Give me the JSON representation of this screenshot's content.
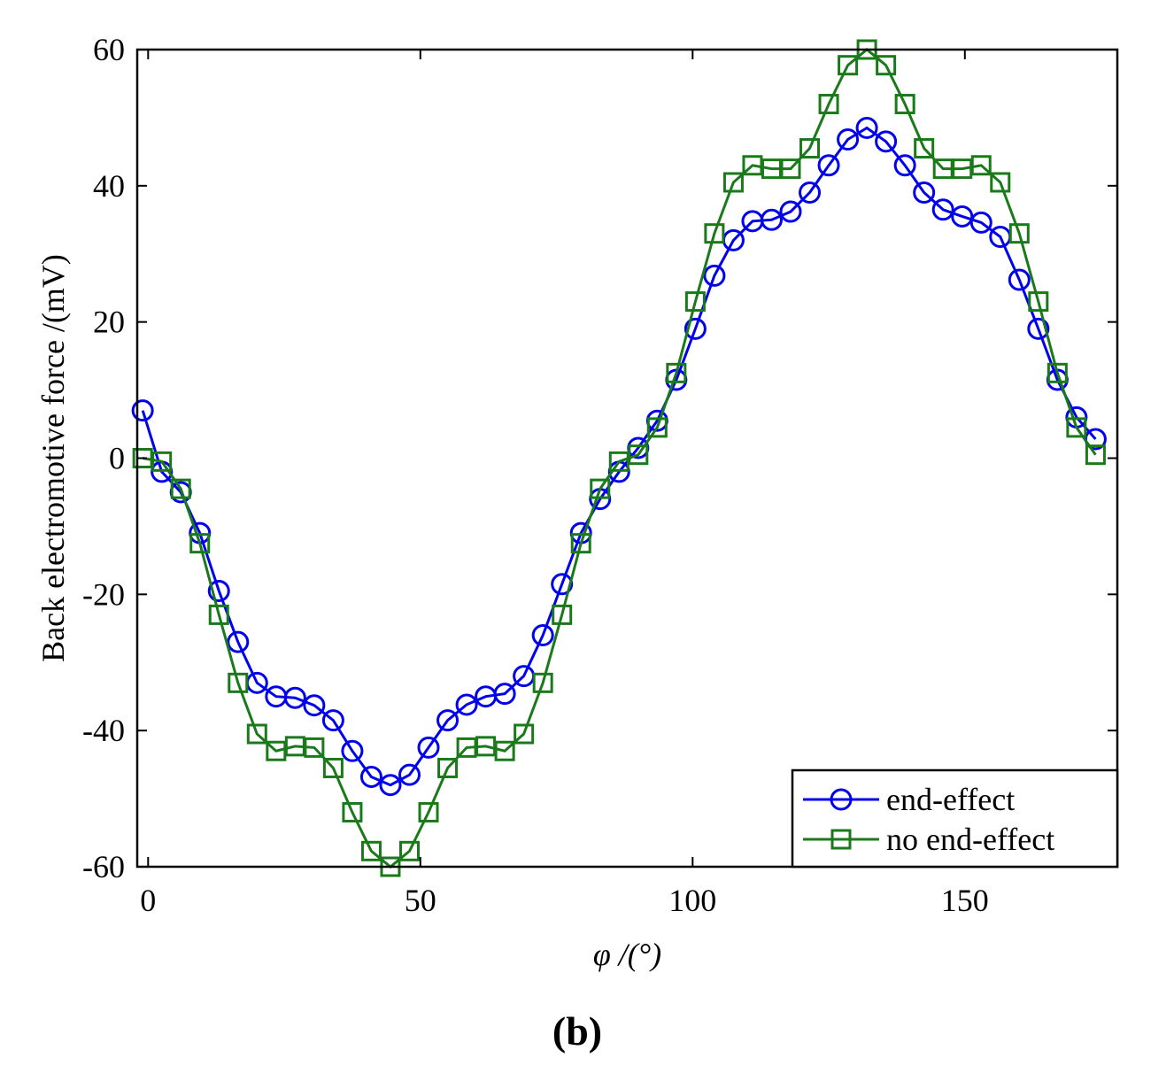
{
  "chart_data": {
    "type": "line",
    "title": "",
    "xlabel": "φ /(°)",
    "ylabel": "Back electromotive force /(mV)",
    "xlim": [
      -2,
      178
    ],
    "ylim": [
      -60,
      60
    ],
    "xticks": [
      0,
      50,
      100,
      150
    ],
    "yticks": [
      -60,
      -40,
      -20,
      0,
      20,
      40,
      60
    ],
    "xtick_labels": [
      "0",
      "50",
      "100",
      "150"
    ],
    "ytick_labels": [
      "-60",
      "-40",
      "-20",
      "0",
      "20",
      "40",
      "60"
    ],
    "grid": false,
    "legend_position": "bottom-right",
    "x": [
      -1,
      2.5,
      6,
      9.5,
      13,
      16.5,
      20,
      23.5,
      27,
      30.5,
      34,
      37.5,
      41,
      44.5,
      48,
      51.5,
      55,
      58.5,
      62,
      65.5,
      69,
      72.5,
      76,
      79.5,
      83,
      86.5,
      90,
      93.5,
      97,
      100.5,
      104,
      107.5,
      111,
      114.5,
      118,
      121.5,
      125,
      128.5,
      132,
      135.5,
      139,
      142.5,
      146,
      149.5,
      153,
      156.5,
      160,
      163.5,
      167,
      170.5,
      174
    ],
    "series": [
      {
        "name": "end-effect",
        "color": "#0000ee",
        "marker": "circle",
        "values": [
          7,
          -2,
          -5,
          -11,
          -19.5,
          -27,
          -33,
          -35,
          -35.2,
          -36.3,
          -38.5,
          -43,
          -46.8,
          -48,
          -46.5,
          -42.5,
          -38.5,
          -36.2,
          -35,
          -34.6,
          -32,
          -26,
          -18.5,
          -11,
          -6,
          -2,
          1.5,
          5.5,
          11.5,
          19,
          26.8,
          32,
          34.8,
          35,
          36.2,
          39,
          43,
          46.8,
          48.5,
          46.5,
          43,
          39,
          36.5,
          35.5,
          34.6,
          32.5,
          26.2,
          19,
          11.5,
          6,
          2.8
        ]
      },
      {
        "name": "no end-effect",
        "color": "#1a7a1a",
        "marker": "square",
        "values": [
          0,
          -0.5,
          -4.5,
          -12.5,
          -23,
          -33,
          -40.5,
          -43,
          -42.3,
          -42.5,
          -45.5,
          -52,
          -57.7,
          -60,
          -57.7,
          -52,
          -45.5,
          -42.5,
          -42.3,
          -43,
          -40.5,
          -33,
          -23,
          -12.5,
          -4.5,
          -0.5,
          0.5,
          4.5,
          12.5,
          23,
          33,
          40.5,
          43,
          42.5,
          42.5,
          45.5,
          52,
          57.7,
          60,
          57.7,
          52,
          45.5,
          42.5,
          42.5,
          43,
          40.5,
          33,
          23,
          12.5,
          4.5,
          0.5
        ]
      }
    ]
  },
  "panel_label": "(b)"
}
